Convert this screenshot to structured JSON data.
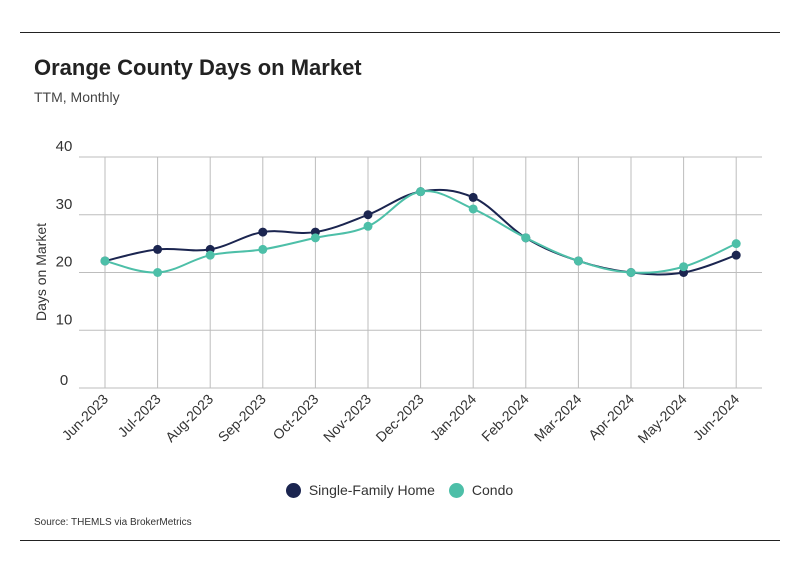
{
  "header": {
    "title": "Orange County Days on Market",
    "subtitle": "TTM, Monthly"
  },
  "footer": {
    "source": "Source:  THEMLS via BrokerMetrics"
  },
  "colors": {
    "single_family": "#1b2550",
    "condo": "#4dbfa8",
    "grid": "#bdbdbd"
  },
  "chart_data": {
    "type": "line",
    "title": "Orange County Days on Market",
    "subtitle": "TTM, Monthly",
    "xlabel": "",
    "ylabel": "Days on Market",
    "ylim": [
      0,
      40
    ],
    "yticks": [
      0,
      10,
      20,
      30,
      40
    ],
    "grid": true,
    "legend_position": "bottom-center",
    "categories": [
      "Jun-2023",
      "Jul-2023",
      "Aug-2023",
      "Sep-2023",
      "Oct-2023",
      "Nov-2023",
      "Dec-2023",
      "Jan-2024",
      "Feb-2024",
      "Mar-2024",
      "Apr-2024",
      "May-2024",
      "Jun-2024"
    ],
    "series": [
      {
        "name": "Single-Family Home",
        "values": [
          22,
          24,
          24,
          27,
          27,
          30,
          34,
          33,
          26,
          22,
          20,
          20,
          23
        ]
      },
      {
        "name": "Condo",
        "values": [
          22,
          20,
          23,
          24,
          26,
          28,
          34,
          31,
          26,
          22,
          20,
          21,
          25
        ]
      }
    ]
  }
}
